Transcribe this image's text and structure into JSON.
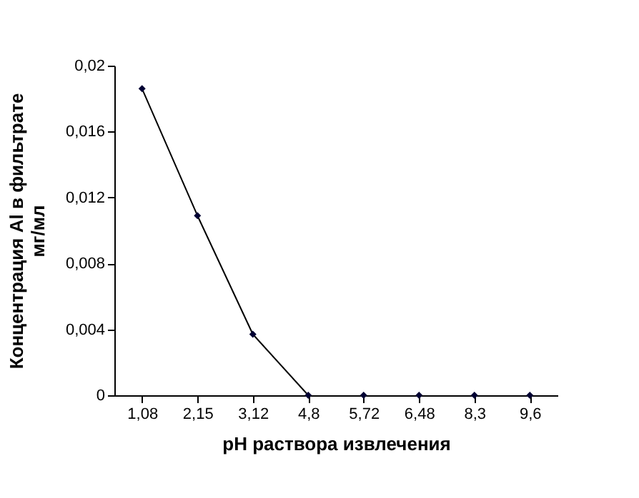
{
  "chart_data": {
    "type": "line",
    "categories": [
      "1,08",
      "2,15",
      "3,12",
      "4,8",
      "5,72",
      "6,48",
      "8,3",
      "9,6"
    ],
    "series": [
      {
        "type": "line",
        "color": "#000033",
        "values": [
          0.0186,
          0.0109,
          0.0037,
          0,
          null,
          null,
          null,
          null
        ]
      },
      {
        "type": "scatter",
        "color": "#000033",
        "values": [
          null,
          null,
          null,
          null,
          0,
          0,
          0,
          0
        ]
      }
    ],
    "xlabel": "pH раствора извлечения",
    "ylabel": "Концентрация Al в фильтрате\nмг/мл",
    "ylim": [
      0,
      0.02
    ],
    "yticks": [
      {
        "value": 0,
        "label": "0"
      },
      {
        "value": 0.004,
        "label": "0,004"
      },
      {
        "value": 0.008,
        "label": "0,008"
      },
      {
        "value": 0.012,
        "label": "0,012"
      },
      {
        "value": 0.016,
        "label": "0,016"
      },
      {
        "value": 0.02,
        "label": "0,02"
      }
    ],
    "marker": "diamond",
    "grid": false
  }
}
